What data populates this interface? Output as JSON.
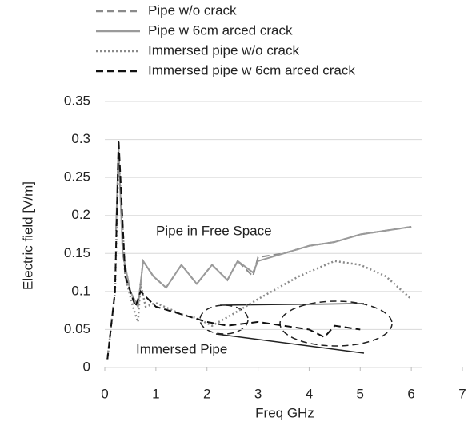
{
  "chart_data": {
    "type": "line",
    "xlabel": "Freq GHz",
    "ylabel": "Electric field [V/m]",
    "annotations": [
      "Pipe in Free Space",
      "Immersed Pipe"
    ],
    "xlim": [
      0,
      7
    ],
    "xticks": [
      0,
      1,
      2,
      3,
      4,
      5,
      6,
      7
    ],
    "ylim": [
      0,
      0.35
    ],
    "yticks": [
      0,
      0.05,
      0.1,
      0.15,
      0.2,
      0.25,
      0.3,
      0.35
    ],
    "grid": true,
    "legend": "top-left",
    "series": [
      {
        "name": "Pipe w/o crack",
        "color": "#8a8a8a",
        "dash": "dashed",
        "x": [
          0.22,
          0.27,
          0.35,
          0.5,
          0.65,
          0.75,
          0.95,
          1.2,
          1.5,
          1.8,
          2.1,
          2.4,
          2.6,
          2.9,
          3.0,
          3.5,
          4.0,
          4.5,
          5.0,
          5.5,
          6.0
        ],
        "values": [
          0.18,
          0.29,
          0.15,
          0.1,
          0.08,
          0.14,
          0.12,
          0.105,
          0.135,
          0.11,
          0.135,
          0.115,
          0.14,
          0.12,
          0.145,
          0.15,
          0.16,
          0.165,
          0.175,
          0.18,
          0.185
        ]
      },
      {
        "name": "Pipe w 6cm arced crack",
        "color": "#9a9a9a",
        "dash": "solid",
        "x": [
          0.22,
          0.27,
          0.35,
          0.5,
          0.65,
          0.75,
          0.95,
          1.2,
          1.5,
          1.8,
          2.1,
          2.4,
          2.6,
          2.9,
          3.0,
          3.5,
          4.0,
          4.5,
          5.0,
          5.5,
          6.0
        ],
        "values": [
          0.18,
          0.29,
          0.15,
          0.1,
          0.08,
          0.14,
          0.12,
          0.105,
          0.135,
          0.11,
          0.135,
          0.115,
          0.14,
          0.125,
          0.14,
          0.15,
          0.16,
          0.165,
          0.175,
          0.18,
          0.185
        ]
      },
      {
        "name": "Immersed pipe w/o crack",
        "color": "#8a8a8a",
        "dash": "dotted",
        "x": [
          0.05,
          0.2,
          0.27,
          0.4,
          0.55,
          0.65,
          0.7,
          0.8,
          1.0,
          1.5,
          1.8,
          2.1,
          2.5,
          3.0,
          3.8,
          4.5,
          5.0,
          5.5,
          6.0
        ],
        "values": [
          0.01,
          0.1,
          0.28,
          0.12,
          0.08,
          0.06,
          0.11,
          0.08,
          0.085,
          0.07,
          0.065,
          0.055,
          0.07,
          0.09,
          0.12,
          0.14,
          0.135,
          0.12,
          0.09
        ]
      },
      {
        "name": "Immersed pipe w 6cm arced crack",
        "color": "#111111",
        "dash": "dashed",
        "x": [
          0.05,
          0.2,
          0.27,
          0.4,
          0.6,
          0.7,
          1.0,
          1.5,
          2.0,
          2.4,
          3.0,
          3.5,
          4.0,
          4.3,
          4.5,
          5.0
        ],
        "values": [
          0.01,
          0.1,
          0.3,
          0.12,
          0.08,
          0.1,
          0.08,
          0.07,
          0.06,
          0.055,
          0.06,
          0.055,
          0.05,
          0.04,
          0.055,
          0.05
        ]
      }
    ]
  }
}
